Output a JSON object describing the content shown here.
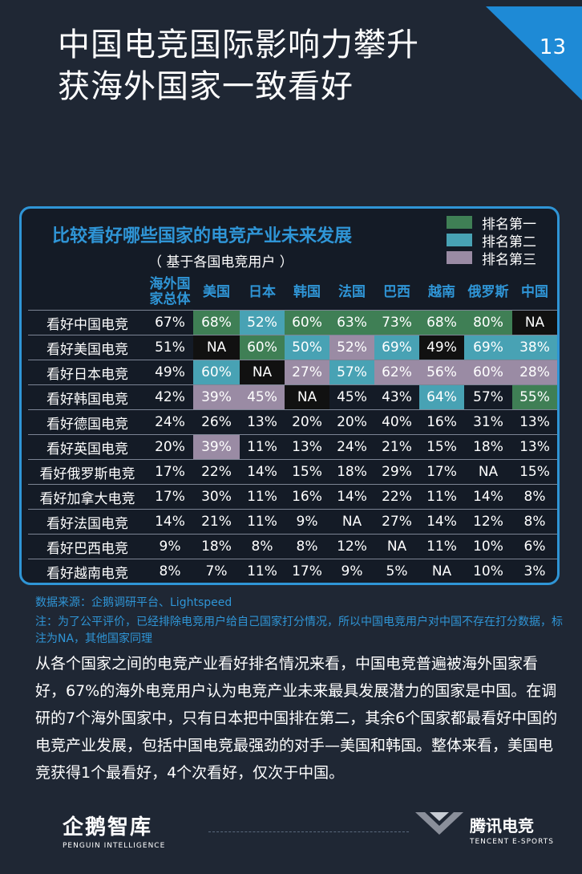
{
  "page": {
    "title_line1": "中国电竞国际影响力攀升",
    "title_line2": "获海外国家一致看好",
    "page_number": "13"
  },
  "chart_data": {
    "type": "table",
    "title": "比较看好哪些国家的电竞产业未来发展",
    "subtitle": "（ 基于各国电竞用户 ）",
    "legend": [
      {
        "label": "排名第一",
        "color": "#3f7f55",
        "key": "g"
      },
      {
        "label": "排名第二",
        "color": "#48a2b4",
        "key": "c"
      },
      {
        "label": "排名第三",
        "color": "#9a8ba4",
        "key": "p"
      }
    ],
    "columns": [
      "海外国家总体",
      "美国",
      "日本",
      "韩国",
      "法国",
      "巴西",
      "越南",
      "俄罗斯",
      "中国"
    ],
    "rows": [
      {
        "label": "看好中国电竞",
        "values": [
          "67%",
          "68%",
          "52%",
          "60%",
          "63%",
          "73%",
          "68%",
          "80%",
          "NA"
        ],
        "ranks": [
          "",
          "g",
          "c",
          "g",
          "g",
          "g",
          "g",
          "g",
          "n"
        ]
      },
      {
        "label": "看好美国电竞",
        "values": [
          "51%",
          "NA",
          "60%",
          "50%",
          "52%",
          "69%",
          "49%",
          "69%",
          "38%"
        ],
        "ranks": [
          "",
          "n",
          "g",
          "c",
          "p",
          "c",
          "n",
          "c",
          "c"
        ]
      },
      {
        "label": "看好日本电竞",
        "values": [
          "49%",
          "60%",
          "NA",
          "27%",
          "57%",
          "62%",
          "56%",
          "60%",
          "28%"
        ],
        "ranks": [
          "",
          "c",
          "n",
          "p",
          "c",
          "p",
          "p",
          "p",
          "p"
        ]
      },
      {
        "label": "看好韩国电竞",
        "values": [
          "42%",
          "39%",
          "45%",
          "NA",
          "45%",
          "43%",
          "64%",
          "57%",
          "55%"
        ],
        "ranks": [
          "",
          "p",
          "p",
          "n",
          "",
          "",
          "c",
          "",
          "g"
        ]
      },
      {
        "label": "看好德国电竞",
        "values": [
          "24%",
          "26%",
          "13%",
          "20%",
          "20%",
          "40%",
          "16%",
          "31%",
          "13%"
        ],
        "ranks": [
          "",
          "",
          "",
          "",
          "",
          "",
          "",
          "",
          ""
        ]
      },
      {
        "label": "看好英国电竞",
        "values": [
          "20%",
          "39%",
          "11%",
          "13%",
          "24%",
          "21%",
          "15%",
          "18%",
          "13%"
        ],
        "ranks": [
          "",
          "p",
          "",
          "",
          "",
          "",
          "",
          "",
          ""
        ]
      },
      {
        "label": "看好俄罗斯电竞",
        "values": [
          "17%",
          "22%",
          "14%",
          "15%",
          "18%",
          "29%",
          "17%",
          "NA",
          "15%"
        ],
        "ranks": [
          "",
          "",
          "",
          "",
          "",
          "",
          "",
          "",
          ""
        ]
      },
      {
        "label": "看好加拿大电竞",
        "values": [
          "17%",
          "30%",
          "11%",
          "16%",
          "14%",
          "22%",
          "11%",
          "14%",
          "8%"
        ],
        "ranks": [
          "",
          "",
          "",
          "",
          "",
          "",
          "",
          "",
          ""
        ]
      },
      {
        "label": "看好法国电竞",
        "values": [
          "14%",
          "21%",
          "11%",
          "9%",
          "NA",
          "27%",
          "14%",
          "12%",
          "8%"
        ],
        "ranks": [
          "",
          "",
          "",
          "",
          "",
          "",
          "",
          "",
          ""
        ]
      },
      {
        "label": "看好巴西电竞",
        "values": [
          "9%",
          "18%",
          "8%",
          "8%",
          "12%",
          "NA",
          "11%",
          "10%",
          "6%"
        ],
        "ranks": [
          "",
          "",
          "",
          "",
          "",
          "",
          "",
          "",
          ""
        ]
      },
      {
        "label": "看好越南电竞",
        "values": [
          "8%",
          "7%",
          "11%",
          "17%",
          "9%",
          "5%",
          "NA",
          "10%",
          "3%"
        ],
        "ranks": [
          "",
          "",
          "",
          "",
          "",
          "",
          "",
          "",
          ""
        ]
      }
    ]
  },
  "notes": {
    "source": "数据来源：企鹅调研平台、Lightspeed",
    "note": "注：为了公平评价，已经排除电竞用户给自己国家打分情况，所以中国电竞用户对中国不存在打分数据，标注为NA，其他国家同理"
  },
  "body_text": "从各个国家之间的电竞产业看好排名情况来看，中国电竞普遍被海外国家看好，67%的海外电竞用户认为电竞产业未来最具发展潜力的国家是中国。在调研的7个海外国家中，只有日本把中国排在第二，其余6个国家都最看好中国的电竞产业发展，包括中国电竞最强劲的对手—美国和韩国。整体来看，美国电竞获得1个最看好，4个次看好，仅次于中国。",
  "footer": {
    "left_logo": "企鹅智库",
    "left_logo_sub": "PENGUIN INTELLIGENCE",
    "right_logo": "腾讯电竞",
    "right_logo_sub": "TENCENT E-SPORTS"
  },
  "colors": {
    "background": "#1f2734",
    "accent": "#2f95d6"
  }
}
